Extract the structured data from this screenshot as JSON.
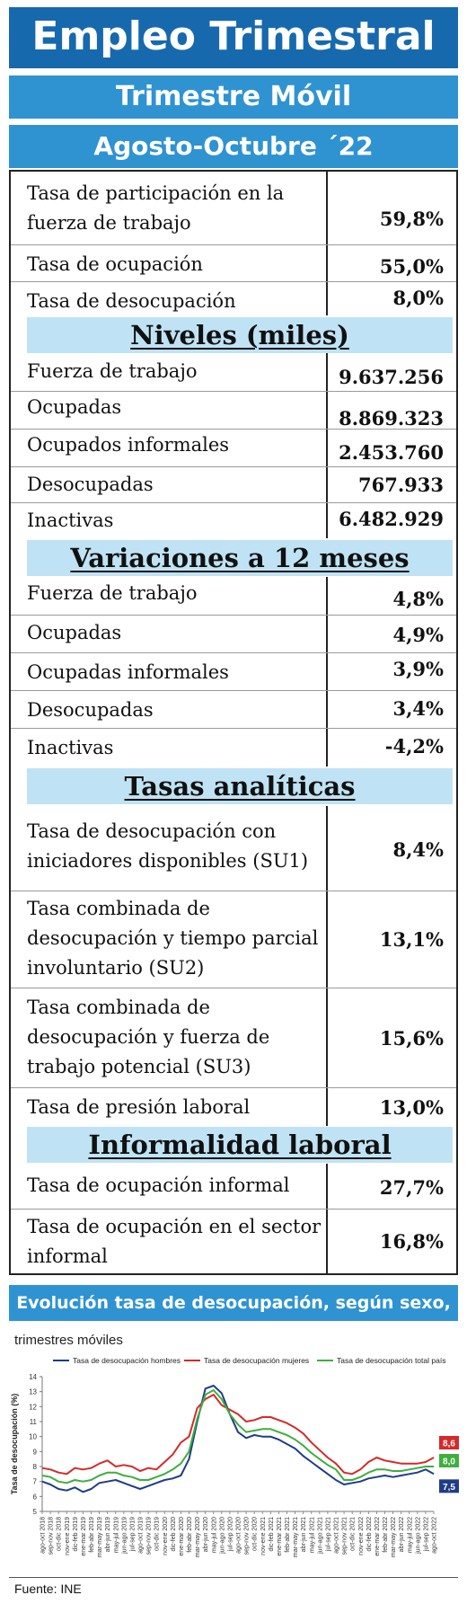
{
  "header": {
    "title": "Empleo Trimestral",
    "subtitle": "Trimestre Móvil",
    "period": "Agosto-Octubre ´22"
  },
  "tasas_principales": [
    {
      "label": "Tasa de participación en la fuerza de trabajo",
      "value": "59,8%"
    },
    {
      "label": "Tasa de ocupación",
      "value": "55,0%"
    },
    {
      "label": "Tasa de desocupación",
      "value": "8,0%"
    }
  ],
  "niveles": {
    "title": "Niveles  (miles)",
    "rows": [
      {
        "label": "Fuerza de trabajo",
        "value": "9.637.256"
      },
      {
        "label": "Ocupadas",
        "value": "8.869.323"
      },
      {
        "label": "Ocupados informales",
        "value": "2.453.760"
      },
      {
        "label": "Desocupadas",
        "value": "767.933"
      },
      {
        "label": "Inactivas",
        "value": "6.482.929"
      }
    ]
  },
  "variaciones": {
    "title": "Variaciones a 12 meses",
    "rows": [
      {
        "label": "Fuerza de trabajo",
        "value": "4,8%"
      },
      {
        "label": "Ocupadas",
        "value": "4,9%"
      },
      {
        "label": "Ocupadas informales",
        "value": "3,9%"
      },
      {
        "label": "Desocupadas",
        "value": "3,4%"
      },
      {
        "label": "Inactivas",
        "value": "-4,2%"
      }
    ]
  },
  "analiticas": {
    "title": "Tasas  analíticas",
    "rows": [
      {
        "label": "Tasa de desocupación con iniciadores disponibles (SU1)",
        "value": "8,4%"
      },
      {
        "label": "Tasa combinada de desocupación y tiempo parcial involuntario (SU2)",
        "value": "13,1%"
      },
      {
        "label": "Tasa combinada de desocupación y fuerza de trabajo potencial (SU3)",
        "value": "15,6%"
      },
      {
        "label": "Tasa de presión laboral",
        "value": "13,0%"
      }
    ]
  },
  "informalidad": {
    "title": "Informalidad  laboral",
    "rows": [
      {
        "label": "Tasa de ocupación informal",
        "value": "27,7%"
      },
      {
        "label": "Tasa de ocupación en el sector informal",
        "value": "16,8%"
      }
    ]
  },
  "chart_section": {
    "title": "Evolución tasa de desocupación, según sexo, total país",
    "subtitle": "trimestres móviles"
  },
  "chart_data": {
    "type": "line",
    "title": "",
    "xlabel": "",
    "ylabel": "Tasa de desocupación (%)",
    "ylim": [
      5,
      14
    ],
    "yticks": [
      5,
      6,
      7,
      8,
      9,
      10,
      11,
      12,
      13,
      14
    ],
    "grid": false,
    "legend_position": "top",
    "x": [
      "ago-oct 2018",
      "sep-nov 2018",
      "oct-dic 2018",
      "nov-ene 2019",
      "dic-feb 2019",
      "ene-mar 2019",
      "feb-abr 2019",
      "mar-may 2019",
      "abr-jun 2019",
      "may-jul 2019",
      "jun-ago 2019",
      "jul-sep 2019",
      "ago-oct 2019",
      "sep-nov 2019",
      "oct-dic 2019",
      "nov-ene 2020",
      "dic-feb 2020",
      "ene-mar 2020",
      "feb-abr 2020",
      "mar-may 2020",
      "abr-jun 2020",
      "may-jul 2020",
      "jun-ago 2020",
      "jul-sep 2020",
      "ago-oct 2020",
      "sep-nov 2020",
      "oct-dic 2020",
      "nov-ene 2021",
      "dic-feb 2021",
      "ene-mar 2021",
      "feb-abr 2021",
      "mar-may 2021",
      "abr-jun 2021",
      "may-jul 2021",
      "jun-ago 2021",
      "jul-sep 2021",
      "ago-oct 2021",
      "sep-nov 2021",
      "oct-dic 2021",
      "nov-ene 2022",
      "dic-feb 2022",
      "ene-mar 2022",
      "feb-abr 2022",
      "mar-may 2022",
      "abr-jun 2022",
      "may-jul 2022",
      "jun-ago 2022",
      "jul-sep 2022",
      "ago-oct 2022"
    ],
    "series": [
      {
        "name": "Tasa de desocupación hombres",
        "color": "#1f3c88",
        "values": [
          7.0,
          6.8,
          6.5,
          6.4,
          6.6,
          6.3,
          6.5,
          6.9,
          7.0,
          7.1,
          6.9,
          6.7,
          6.5,
          6.7,
          6.9,
          7.1,
          7.2,
          7.4,
          8.5,
          11.0,
          13.2,
          13.4,
          12.9,
          11.5,
          10.3,
          9.9,
          10.1,
          10.0,
          10.0,
          9.8,
          9.5,
          9.2,
          8.7,
          8.3,
          7.9,
          7.5,
          7.1,
          6.8,
          6.9,
          7.0,
          7.2,
          7.3,
          7.4,
          7.3,
          7.4,
          7.5,
          7.6,
          7.8,
          7.5
        ]
      },
      {
        "name": "Tasa de desocupación mujeres",
        "color": "#d42a2a",
        "values": [
          7.9,
          7.8,
          7.6,
          7.5,
          7.9,
          7.8,
          7.9,
          8.2,
          8.4,
          8.0,
          8.1,
          8.0,
          7.7,
          7.9,
          7.8,
          8.3,
          8.8,
          9.6,
          10.0,
          11.9,
          12.5,
          12.8,
          12.1,
          11.8,
          11.5,
          11.0,
          11.1,
          11.3,
          11.3,
          11.1,
          10.9,
          10.6,
          10.2,
          9.6,
          9.1,
          8.6,
          8.2,
          7.6,
          7.5,
          7.8,
          8.3,
          8.6,
          8.4,
          8.3,
          8.2,
          8.2,
          8.2,
          8.3,
          8.6
        ]
      },
      {
        "name": "Tasa de desocupación total país",
        "color": "#3fae3f",
        "values": [
          7.4,
          7.3,
          7.0,
          6.9,
          7.1,
          7.0,
          7.1,
          7.4,
          7.6,
          7.6,
          7.4,
          7.3,
          7.1,
          7.1,
          7.3,
          7.5,
          7.8,
          8.2,
          9.0,
          11.2,
          12.8,
          13.1,
          12.5,
          11.5,
          10.8,
          10.3,
          10.4,
          10.5,
          10.5,
          10.3,
          10.1,
          9.8,
          9.4,
          8.9,
          8.5,
          8.1,
          7.8,
          7.1,
          7.1,
          7.3,
          7.6,
          7.8,
          7.8,
          7.7,
          7.7,
          7.8,
          7.9,
          8.0,
          8.0
        ]
      }
    ],
    "end_labels": [
      "8,6",
      "8,0",
      "7,5"
    ]
  },
  "footer": {
    "source": "Fuente: INE"
  }
}
